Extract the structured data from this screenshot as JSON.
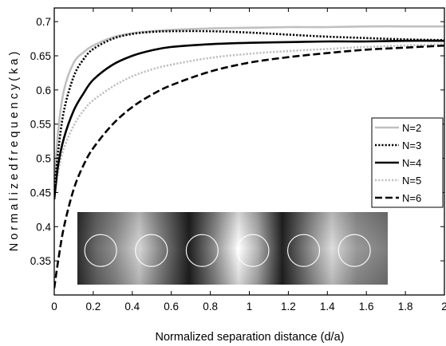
{
  "chart_data": {
    "type": "line",
    "xlabel": "Normalized separation distance (d/a)",
    "ylabel": "N o r m a l i z e d  f r e q u e n c y  ( k a )",
    "xlim": [
      0,
      2
    ],
    "ylim": [
      0.3,
      0.72
    ],
    "xticks": [
      0,
      0.2,
      0.4,
      0.6,
      0.8,
      1,
      1.2,
      1.4,
      1.6,
      1.8,
      2
    ],
    "xtick_labels": [
      "0",
      "0.2",
      "0.4",
      "0.6",
      "0.8",
      "1",
      "1.2",
      "1.4",
      "1.6",
      "1.8",
      "2"
    ],
    "yticks": [
      0.35,
      0.4,
      0.45,
      0.5,
      0.55,
      0.6,
      0.65,
      0.7
    ],
    "ytick_labels": [
      "0.35",
      "0.4",
      "0.45",
      "0.5",
      "0.55",
      "0.6",
      "0.65",
      "0.7"
    ],
    "grid": false,
    "legend_position": "right",
    "series": [
      {
        "name": "N=2",
        "color": "#c0c0c0",
        "dash": "solid",
        "x": [
          0,
          0.02,
          0.05,
          0.1,
          0.15,
          0.2,
          0.3,
          0.4,
          0.5,
          0.6,
          0.8,
          1.0,
          1.2,
          1.4,
          1.6,
          1.8,
          2.0
        ],
        "y": [
          0.46,
          0.54,
          0.6,
          0.64,
          0.655,
          0.665,
          0.677,
          0.683,
          0.686,
          0.688,
          0.69,
          0.691,
          0.692,
          0.692,
          0.693,
          0.693,
          0.693
        ]
      },
      {
        "name": "N=3",
        "color": "#000000",
        "dash": "dotted",
        "x": [
          0,
          0.02,
          0.05,
          0.1,
          0.15,
          0.2,
          0.3,
          0.4,
          0.5,
          0.6,
          0.8,
          1.0,
          1.2,
          1.4,
          1.6,
          1.8,
          2.0
        ],
        "y": [
          0.45,
          0.51,
          0.57,
          0.62,
          0.645,
          0.66,
          0.675,
          0.682,
          0.685,
          0.686,
          0.686,
          0.684,
          0.681,
          0.678,
          0.676,
          0.674,
          0.673
        ]
      },
      {
        "name": "N=4",
        "color": "#000000",
        "dash": "solid",
        "x": [
          0,
          0.02,
          0.05,
          0.1,
          0.15,
          0.2,
          0.3,
          0.4,
          0.5,
          0.6,
          0.8,
          1.0,
          1.2,
          1.4,
          1.6,
          1.8,
          2.0
        ],
        "y": [
          0.44,
          0.49,
          0.53,
          0.57,
          0.595,
          0.615,
          0.637,
          0.65,
          0.658,
          0.663,
          0.667,
          0.669,
          0.67,
          0.671,
          0.671,
          0.672,
          0.672
        ]
      },
      {
        "name": "N=5",
        "color": "#c0c0c0",
        "dash": "dotted",
        "x": [
          0,
          0.02,
          0.05,
          0.1,
          0.15,
          0.2,
          0.3,
          0.4,
          0.5,
          0.6,
          0.8,
          1.0,
          1.2,
          1.4,
          1.6,
          1.8,
          2.0
        ],
        "y": [
          0.44,
          0.48,
          0.515,
          0.548,
          0.57,
          0.585,
          0.605,
          0.62,
          0.63,
          0.637,
          0.647,
          0.653,
          0.657,
          0.66,
          0.663,
          0.665,
          0.667
        ]
      },
      {
        "name": "N=6",
        "color": "#000000",
        "dash": "dashed",
        "x": [
          0,
          0.02,
          0.05,
          0.1,
          0.15,
          0.2,
          0.3,
          0.4,
          0.5,
          0.6,
          0.8,
          1.0,
          1.2,
          1.4,
          1.6,
          1.8,
          2.0
        ],
        "y": [
          0.31,
          0.35,
          0.4,
          0.455,
          0.49,
          0.515,
          0.55,
          0.575,
          0.593,
          0.607,
          0.627,
          0.64,
          0.648,
          0.654,
          0.659,
          0.662,
          0.665
        ]
      }
    ],
    "inset": {
      "description_of_content": "field pattern image with six circles",
      "circle_count": 6,
      "circle_color": "#ffffff"
    }
  }
}
